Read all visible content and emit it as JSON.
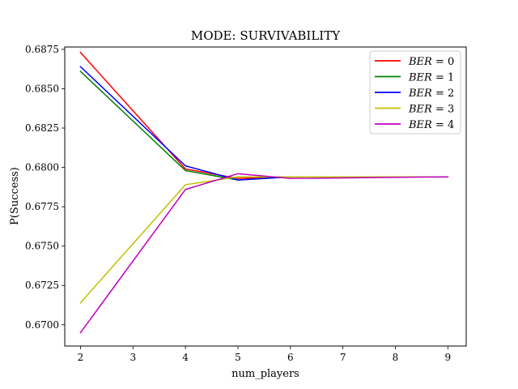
{
  "chart_data": {
    "type": "line",
    "title": "MODE: SURVIVABILITY",
    "xlabel": "num_players",
    "ylabel": "P(Success)",
    "xlim": [
      1.7,
      9.35
    ],
    "ylim": [
      0.66865,
      0.68765
    ],
    "xticks": [
      2,
      3,
      4,
      5,
      6,
      7,
      8,
      9
    ],
    "yticks": [
      0.67,
      0.6725,
      0.675,
      0.6775,
      0.68,
      0.6825,
      0.685,
      0.6875
    ],
    "ytick_labels": [
      "0.6700",
      "0.6725",
      "0.6750",
      "0.6775",
      "0.6800",
      "0.6825",
      "0.6850",
      "0.6875"
    ],
    "grid": false,
    "legend_position": "top-right",
    "x": [
      2,
      4,
      5,
      6,
      9
    ],
    "series": [
      {
        "name_var": "BER",
        "name_val": "0",
        "color": "#ff0000",
        "values": [
          0.6873,
          0.6799,
          0.6793,
          0.6794,
          0.6794
        ]
      },
      {
        "name_var": "BER",
        "name_val": "1",
        "color": "#008000",
        "values": [
          0.6861,
          0.6798,
          0.6792,
          0.6794,
          0.6794
        ]
      },
      {
        "name_var": "BER",
        "name_val": "2",
        "color": "#0000ff",
        "values": [
          0.6864,
          0.6801,
          0.6792,
          0.6794,
          0.6794
        ]
      },
      {
        "name_var": "BER",
        "name_val": "3",
        "color": "#bfbf00",
        "values": [
          0.6714,
          0.6789,
          0.6794,
          0.6794,
          0.6794
        ]
      },
      {
        "name_var": "BER",
        "name_val": "4",
        "color": "#bf00bf",
        "values": [
          0.6695,
          0.6786,
          0.6796,
          0.6793,
          0.6794
        ]
      }
    ]
  }
}
